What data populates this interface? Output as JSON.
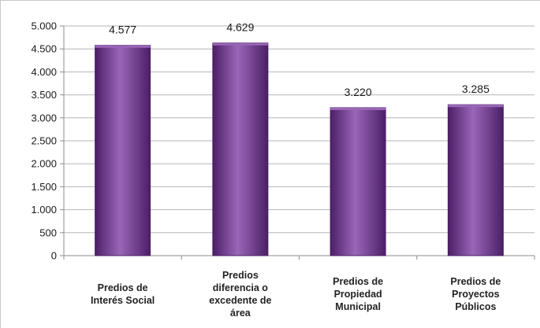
{
  "chart_data": {
    "type": "bar",
    "categories": [
      "Predios de Interés Social",
      "Predios diferencia o excedente de área",
      "Predios de Propiedad Municipal",
      "Predios de Proyectos Públicos"
    ],
    "category_label_lines": [
      [
        "Predios de",
        "Interés Social"
      ],
      [
        "Predios",
        "diferencia o",
        "excedente de",
        "área"
      ],
      [
        "Predios de",
        "Propiedad",
        "Municipal"
      ],
      [
        "Predios de",
        "Proyectos",
        "Públicos"
      ]
    ],
    "values": [
      4577,
      4629,
      3220,
      3285
    ],
    "data_labels": [
      "4.577",
      "4.629",
      "3.220",
      "3.285"
    ],
    "ylim": [
      0,
      5000
    ],
    "yticks": [
      0,
      500,
      1000,
      1500,
      2000,
      2500,
      3000,
      3500,
      4000,
      4500,
      5000
    ],
    "ytick_labels": [
      "0",
      "500",
      "1.000",
      "1.500",
      "2.000",
      "2.500",
      "3.000",
      "3.500",
      "4.000",
      "4.500",
      "5.000"
    ],
    "grid": true,
    "legend": "none",
    "title": "",
    "xlabel": "",
    "ylabel": "",
    "colors": {
      "bar": "#7b3f98",
      "bar_light": "#9a66b8",
      "bar_dark": "#4b1f66",
      "grid": "#b5b5b5",
      "axis": "#8c8c8c",
      "background": "#ffffff"
    }
  }
}
